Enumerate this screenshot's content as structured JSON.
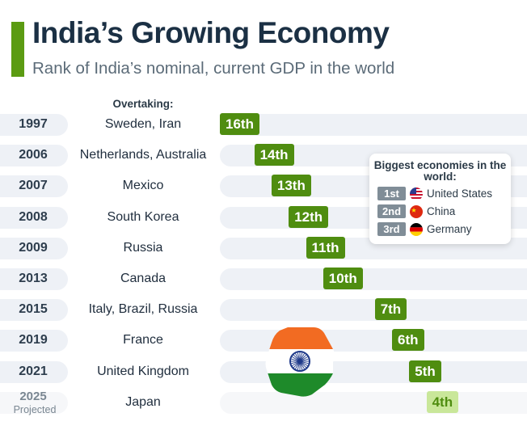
{
  "header": {
    "title": "India’s Growing Economy",
    "subtitle": "Rank of India’s nominal, current GDP in the world"
  },
  "column_header": "Overtaking:",
  "colors": {
    "accent": "#5b9b12",
    "bar": "#4f8d10",
    "bar_projected": "#c9e79a",
    "track": "#eef1f6",
    "legend_rank_bg": "#808d97"
  },
  "chart_data": {
    "type": "bar",
    "title": "India’s Growing Economy",
    "subtitle": "Rank of India’s nominal, current GDP in the world",
    "ylabel": "Overtaking:",
    "rank_axis": {
      "best": 1,
      "worst": 17,
      "direction": "lower rank plotted further right"
    },
    "rows": [
      {
        "year": "1997",
        "overtaking": "Sweden, Iran",
        "rank": 16,
        "label": "16th",
        "projected": false
      },
      {
        "year": "2006",
        "overtaking": "Netherlands, Australia",
        "rank": 14,
        "label": "14th",
        "projected": false
      },
      {
        "year": "2007",
        "overtaking": "Mexico",
        "rank": 13,
        "label": "13th",
        "projected": false
      },
      {
        "year": "2008",
        "overtaking": "South Korea",
        "rank": 12,
        "label": "12th",
        "projected": false
      },
      {
        "year": "2009",
        "overtaking": "Russia",
        "rank": 11,
        "label": "11th",
        "projected": false
      },
      {
        "year": "2013",
        "overtaking": "Canada",
        "rank": 10,
        "label": "10th",
        "projected": false
      },
      {
        "year": "2015",
        "overtaking": "Italy, Brazil, Russia",
        "rank": 7,
        "label": "7th",
        "projected": false
      },
      {
        "year": "2019",
        "overtaking": "France",
        "rank": 6,
        "label": "6th",
        "projected": false
      },
      {
        "year": "2021",
        "overtaking": "United Kingdom",
        "rank": 5,
        "label": "5th",
        "projected": false
      },
      {
        "year": "2025",
        "year_note": "Projected",
        "overtaking": "Japan",
        "rank": 4,
        "label": "4th",
        "projected": true
      }
    ],
    "legend": {
      "title": "Biggest economies in the world:",
      "items": [
        {
          "rank": "1st",
          "country": "United States",
          "flag": "us-flag"
        },
        {
          "rank": "2nd",
          "country": "China",
          "flag": "china-flag"
        },
        {
          "rank": "3rd",
          "country": "Germany",
          "flag": "germany-flag"
        }
      ]
    }
  }
}
